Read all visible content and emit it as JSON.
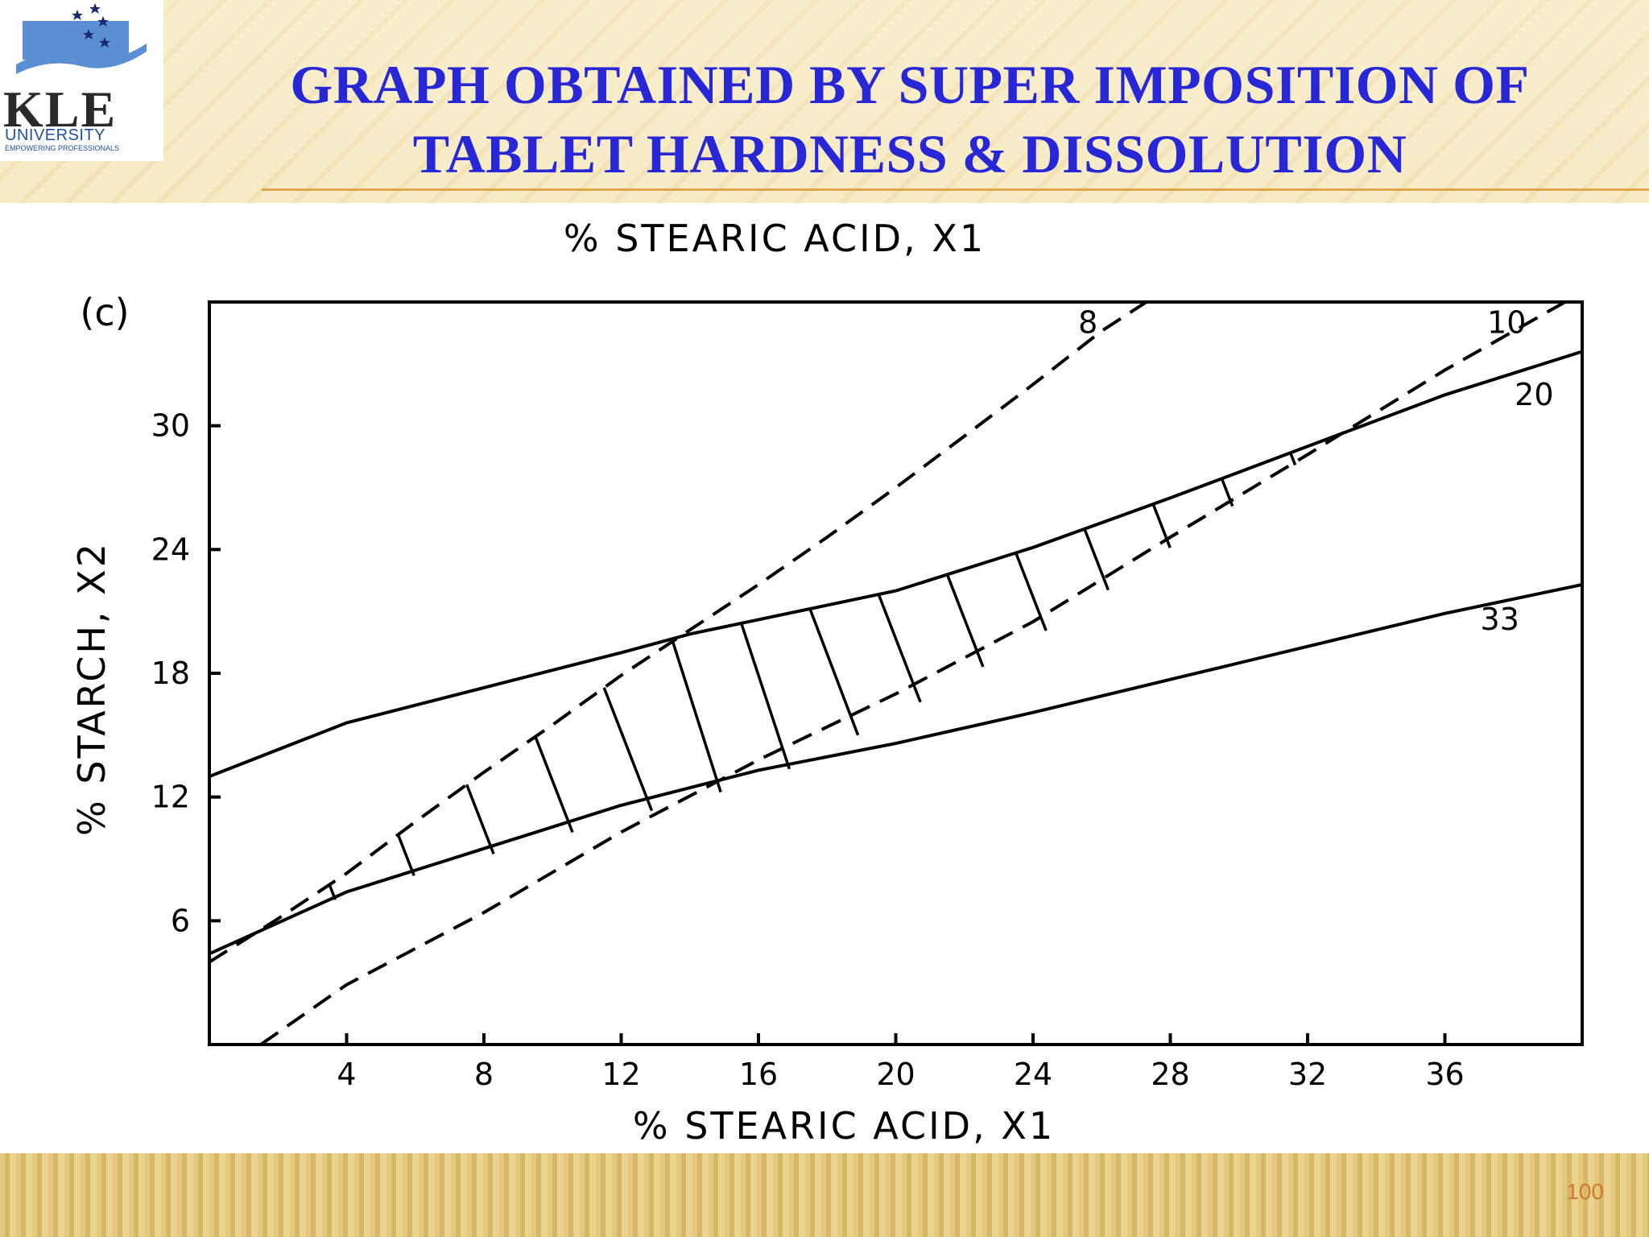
{
  "logo": {
    "name": "KLE",
    "sub": "UNIVERSITY",
    "tagline": "EMPOWERING PROFESSIONALS"
  },
  "title": {
    "line1": "GRAPH OBTAINED BY SUPER IMPOSITION OF",
    "line2": "TABLET HARDNESS & DISSOLUTION"
  },
  "page_number": "100",
  "colors": {
    "title": "#2727d6",
    "page_number": "#d17a2b",
    "header_rule": "#e0a64a"
  },
  "chart_data": {
    "type": "line",
    "panel_label": "(c)",
    "top_label": "% STEARIC ACID, X1",
    "xlabel": "% STEARIC ACID, X1",
    "ylabel": "% STARCH, X2",
    "xlim": [
      0,
      40
    ],
    "ylim": [
      0,
      36
    ],
    "x_ticks": [
      "4",
      "8",
      "12",
      "16",
      "20",
      "24",
      "28",
      "32",
      "36"
    ],
    "y_ticks": [
      "6",
      "12",
      "18",
      "24",
      "30"
    ],
    "grid": false,
    "series": [
      {
        "name": "8",
        "style": "dashed",
        "x": [
          0,
          2,
          4,
          6,
          8,
          10,
          12,
          14,
          16,
          18,
          20,
          22,
          24,
          26,
          27.3
        ],
        "y": [
          4.0,
          6.1,
          8.3,
          10.8,
          13.2,
          15.5,
          17.9,
          20.1,
          22.3,
          24.6,
          27.0,
          29.5,
          32.0,
          34.6,
          36
        ]
      },
      {
        "name": "10",
        "style": "dashed",
        "x": [
          1.5,
          4,
          8,
          12,
          16,
          20,
          24,
          28,
          32,
          36,
          39.5
        ],
        "y": [
          0,
          2.9,
          6.4,
          10.3,
          13.8,
          17.0,
          20.5,
          24.6,
          28.6,
          32.7,
          36.0
        ]
      },
      {
        "name": "20",
        "style": "solid",
        "x": [
          0,
          4,
          8,
          12,
          14,
          16,
          20,
          24,
          28,
          32,
          36,
          40
        ],
        "y": [
          13.0,
          15.6,
          17.3,
          19.0,
          19.9,
          20.6,
          22.0,
          24.1,
          26.5,
          29.0,
          31.5,
          33.6
        ]
      },
      {
        "name": "33",
        "style": "solid",
        "x": [
          0,
          4,
          8,
          12,
          16,
          20,
          24,
          28,
          32,
          36,
          40
        ],
        "y": [
          4.4,
          7.4,
          9.5,
          11.6,
          13.3,
          14.6,
          16.1,
          17.7,
          19.3,
          20.9,
          22.3
        ]
      }
    ],
    "feasible_region": "hatched area between curves 8, 10, 20 and 33"
  }
}
